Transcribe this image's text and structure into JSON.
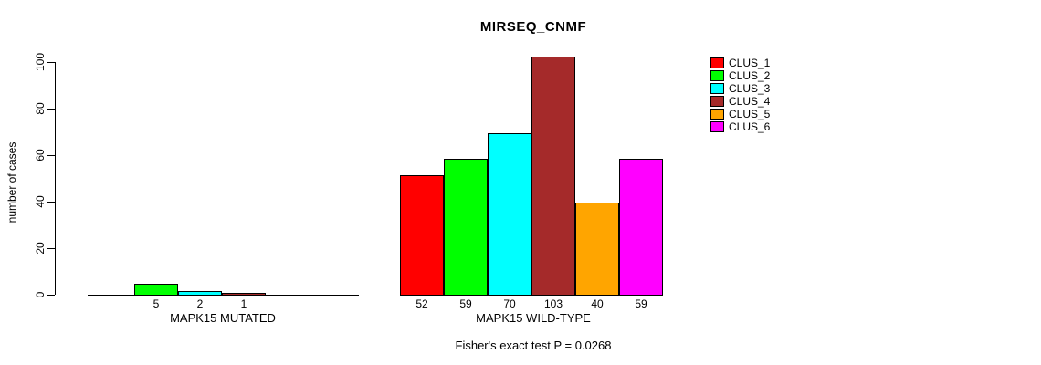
{
  "chart_data": {
    "type": "bar",
    "title": "MIRSEQ_CNMF",
    "ylabel": "number of cases",
    "xlabel": "",
    "ylim": [
      0,
      100
    ],
    "yticks": [
      0,
      20,
      40,
      60,
      80,
      100
    ],
    "grid": false,
    "legend_position": "right",
    "series": [
      {
        "name": "CLUS_1",
        "color": "#FF0000"
      },
      {
        "name": "CLUS_2",
        "color": "#00FF00"
      },
      {
        "name": "CLUS_3",
        "color": "#00FFFF"
      },
      {
        "name": "CLUS_4",
        "color": "#A52A2A"
      },
      {
        "name": "CLUS_5",
        "color": "#FFA500"
      },
      {
        "name": "CLUS_6",
        "color": "#FF00FF"
      }
    ],
    "groups": [
      {
        "label": "MAPK15 MUTATED",
        "categories": [
          "CLUS_1",
          "CLUS_2",
          "CLUS_3",
          "CLUS_4",
          "CLUS_5",
          "CLUS_6"
        ],
        "values": [
          0,
          5,
          2,
          1,
          0,
          0
        ],
        "bar_labels": [
          "",
          "5",
          "2",
          "1",
          "",
          ""
        ]
      },
      {
        "label": "MAPK15 WILD-TYPE",
        "categories": [
          "CLUS_1",
          "CLUS_2",
          "CLUS_3",
          "CLUS_4",
          "CLUS_5",
          "CLUS_6"
        ],
        "values": [
          52,
          59,
          70,
          103,
          40,
          59
        ],
        "bar_labels": [
          "52",
          "59",
          "70",
          "103",
          "40",
          "59"
        ]
      }
    ],
    "annotation": "Fisher's exact test P = 0.0268"
  },
  "legend": {
    "items": [
      {
        "label": "CLUS_1",
        "color": "#FF0000"
      },
      {
        "label": "CLUS_2",
        "color": "#00FF00"
      },
      {
        "label": "CLUS_3",
        "color": "#00FFFF"
      },
      {
        "label": "CLUS_4",
        "color": "#A52A2A"
      },
      {
        "label": "CLUS_5",
        "color": "#FFA500"
      },
      {
        "label": "CLUS_6",
        "color": "#FF00FF"
      }
    ]
  },
  "colors": {
    "axis": "#000000",
    "text": "#000000",
    "background": "#FFFFFF"
  }
}
